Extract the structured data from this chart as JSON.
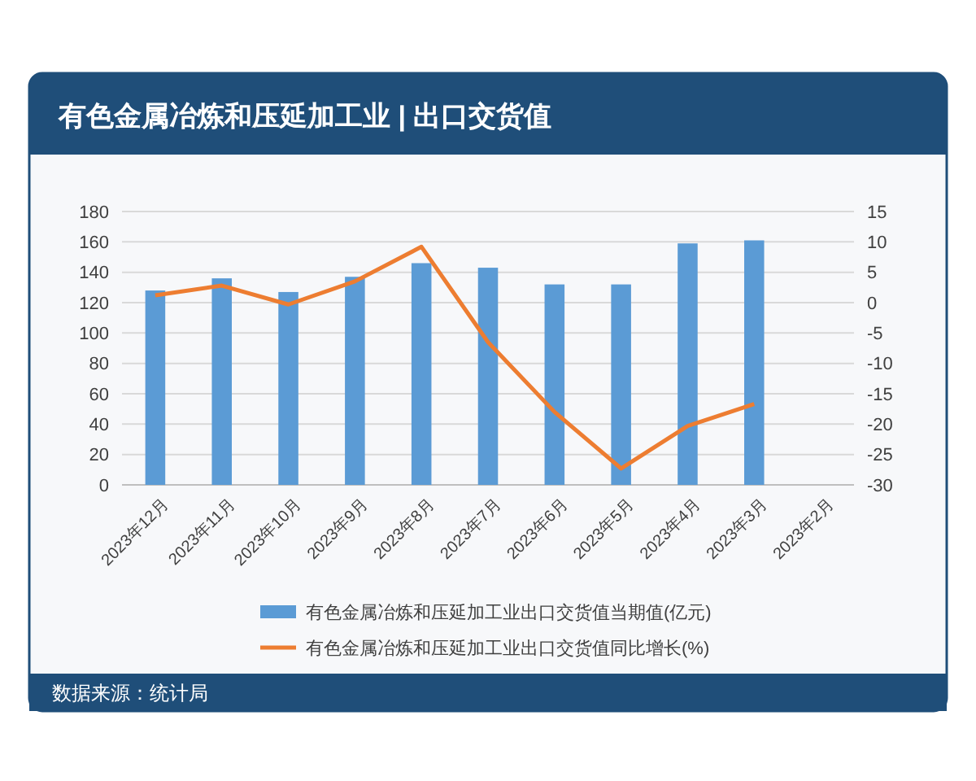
{
  "chart_data": {
    "type": "bar",
    "title": "有色金属冶炼和压延加工业 | 出口交货值",
    "categories": [
      "2023年12月",
      "2023年11月",
      "2023年10月",
      "2023年9月",
      "2023年8月",
      "2023年7月",
      "2023年6月",
      "2023年5月",
      "2023年4月",
      "2023年3月",
      "2023年2月"
    ],
    "series": [
      {
        "name": "有色金属冶炼和压延加工业出口交货值当期值(亿元)",
        "color": "#5b9bd5",
        "values": [
          128,
          136,
          127,
          137,
          146,
          143,
          132,
          132,
          159,
          161,
          null
        ]
      },
      {
        "name": "有色金属冶炼和压延加工业出口交货值同比增长(%)",
        "type": "line",
        "axis": "y2",
        "color": "#ed7d31",
        "values": [
          1.2,
          2.8,
          -0.3,
          3.5,
          9.2,
          -6.5,
          -18,
          -27.3,
          -20.3,
          -16.7,
          null
        ]
      }
    ],
    "ylim": [
      0,
      180
    ],
    "yticks": [
      0,
      20,
      40,
      60,
      80,
      100,
      120,
      140,
      160,
      180
    ],
    "y2lim": [
      -30,
      15
    ],
    "y2ticks": [
      -30,
      -25,
      -20,
      -15,
      -10,
      -5,
      0,
      5,
      10,
      15
    ],
    "grid": "y",
    "legend": "bottom",
    "marker": "none",
    "annotations": [
      "数据来源：统计局"
    ]
  }
}
